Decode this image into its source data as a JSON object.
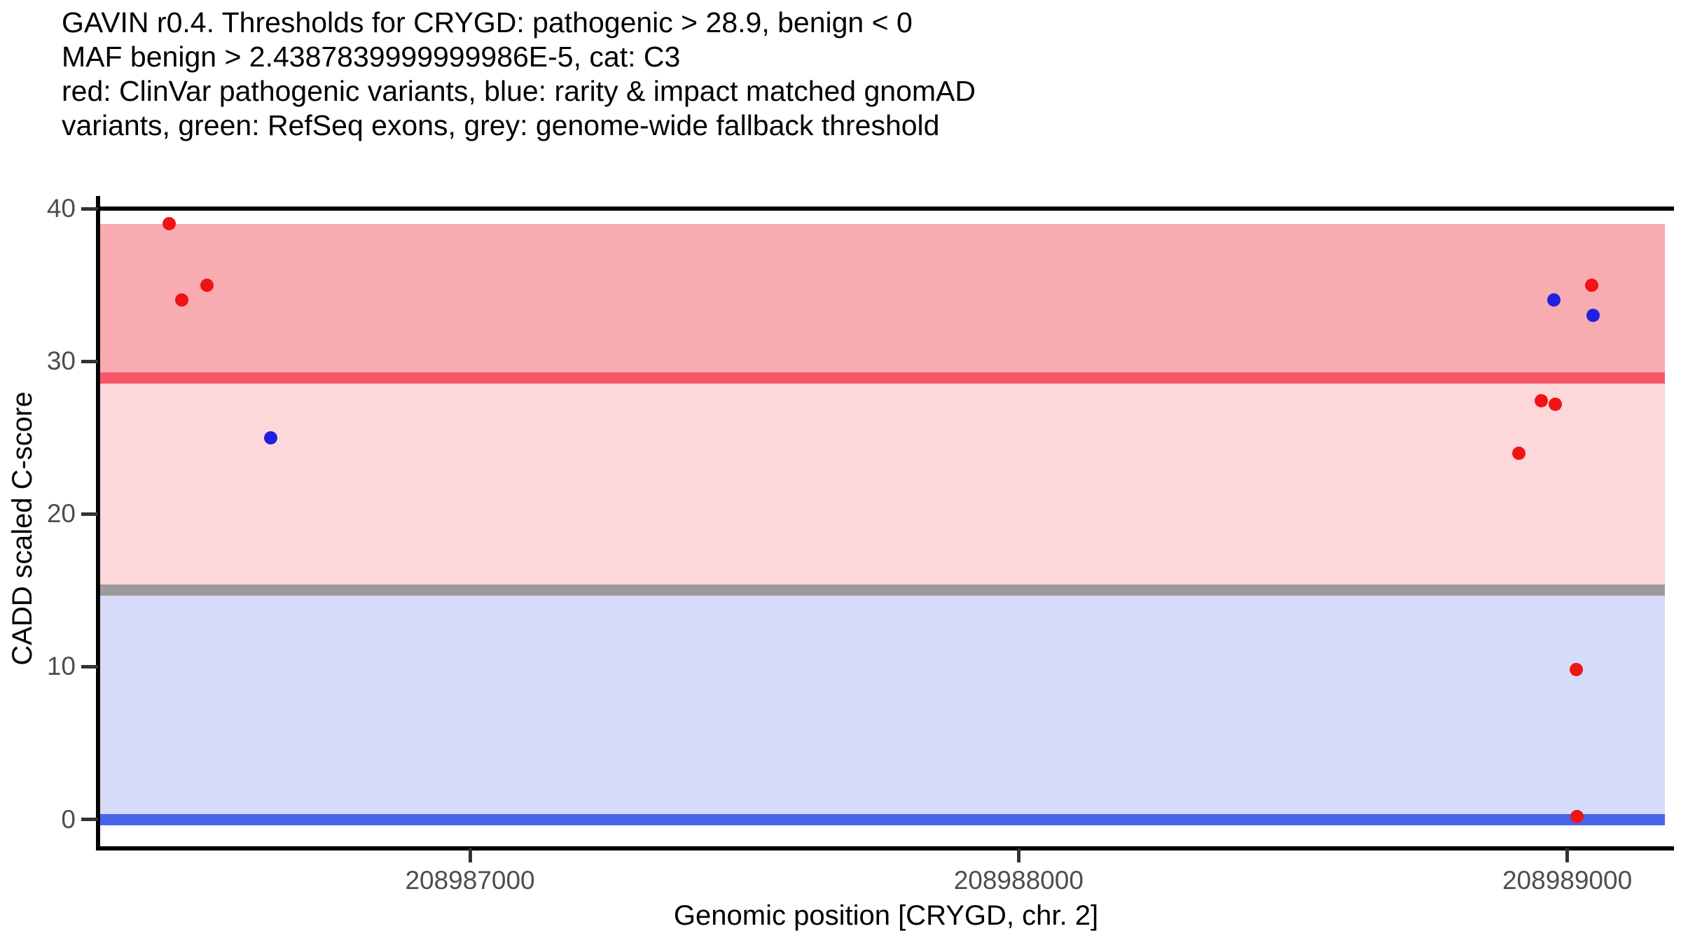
{
  "chart_data": {
    "type": "scatter",
    "title_lines": [
      "GAVIN r0.4. Thresholds for CRYGD: pathogenic > 28.9, benign < 0",
      "MAF benign > 2.4387839999999986E-5, cat: C3",
      "red: ClinVar pathogenic variants, blue: rarity & impact matched gnomAD",
      "variants, green: RefSeq exons, grey: genome-wide fallback threshold"
    ],
    "title": "GAVIN r0.4. Thresholds for CRYGD: pathogenic > 28.9, benign < 0 MAF benign > 2.4387839999999986E-5, cat: C3 red: ClinVar pathogenic variants, blue: rarity & impact matched gnomAD variants, green: RefSeq exons, grey: genome-wide fallback threshold",
    "xlabel": "Genomic position [CRYGD, chr. 2]",
    "ylabel": "CADD scaled C-score",
    "xlim": [
      208986322,
      208989178
    ],
    "ylim": [
      -1.9,
      40
    ],
    "x_ticks": [
      208987000,
      208988000,
      208989000
    ],
    "y_ticks": [
      0,
      10,
      20,
      30,
      40
    ],
    "grid": false,
    "legend_position": "none",
    "bands": [
      {
        "name": "pathogenic-region-band",
        "y_from": 28.9,
        "y_to": 39.0,
        "color": "#F8ACB1"
      },
      {
        "name": "uncertain-region-band",
        "y_from": 15.0,
        "y_to": 28.9,
        "color": "#FCD8DB"
      },
      {
        "name": "benign-region-band",
        "y_from": 0.0,
        "y_to": 15.0,
        "color": "#D5DBF8"
      }
    ],
    "threshold_lines": [
      {
        "name": "pathogenic-threshold-line",
        "value": 28.9,
        "color": "#F7566A"
      },
      {
        "name": "genome-wide-fallback-threshold-line",
        "value": 15.0,
        "color": "#9B9B9B"
      },
      {
        "name": "benign-threshold-line",
        "value": 0.0,
        "color": "#4765EC"
      }
    ],
    "series": [
      {
        "name": "ClinVar pathogenic variants",
        "color": "#F01414",
        "points": [
          [
            208986452,
            39.0
          ],
          [
            208986475,
            34.0
          ],
          [
            208986520,
            35.0
          ],
          [
            208988912,
            24.0
          ],
          [
            208988953,
            27.4
          ],
          [
            208988978,
            27.2
          ],
          [
            208989017,
            9.8
          ],
          [
            208989018,
            0.2
          ],
          [
            208989045,
            35.0
          ]
        ]
      },
      {
        "name": "rarity & impact matched gnomAD variants",
        "color": "#2020E0",
        "points": [
          [
            208986637,
            25.0
          ],
          [
            208988976,
            34.0
          ],
          [
            208989047,
            33.0
          ]
        ]
      }
    ],
    "axis_color": "#000000",
    "tick_label_color": "#4D4D4D"
  }
}
